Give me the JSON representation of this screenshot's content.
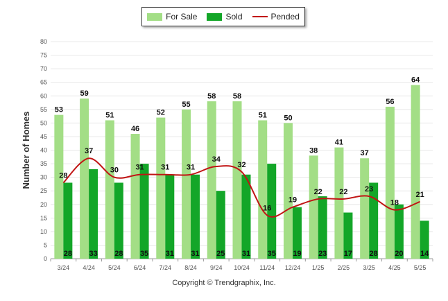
{
  "chart_data": {
    "type": "bar",
    "categories": [
      "3/24",
      "4/24",
      "5/24",
      "6/24",
      "7/24",
      "8/24",
      "9/24",
      "10/24",
      "11/24",
      "12/24",
      "1/25",
      "2/25",
      "3/25",
      "4/25",
      "5/25"
    ],
    "series": [
      {
        "name": "For Sale",
        "kind": "bar",
        "color": "#a3de86",
        "values": [
          53,
          59,
          51,
          46,
          52,
          55,
          58,
          58,
          51,
          50,
          38,
          41,
          37,
          56,
          64
        ]
      },
      {
        "name": "Sold",
        "kind": "bar",
        "color": "#13a628",
        "values": [
          28,
          33,
          28,
          35,
          31,
          31,
          25,
          31,
          35,
          19,
          23,
          17,
          28,
          20,
          14
        ]
      },
      {
        "name": "Pended",
        "kind": "line",
        "color": "#c11414",
        "values": [
          28,
          37,
          30,
          31,
          31,
          31,
          34,
          32,
          16,
          19,
          22,
          22,
          23,
          18,
          21
        ]
      }
    ],
    "ylabel": "Number of Homes",
    "xlabel": "",
    "ylim": [
      0,
      80
    ],
    "yticks": [
      0,
      5,
      10,
      15,
      20,
      25,
      30,
      35,
      40,
      45,
      50,
      55,
      60,
      65,
      70,
      75,
      80
    ],
    "grid": true,
    "legend": "top-center"
  },
  "footer": {
    "copyright": "Copyright © Trendgraphix, Inc."
  }
}
